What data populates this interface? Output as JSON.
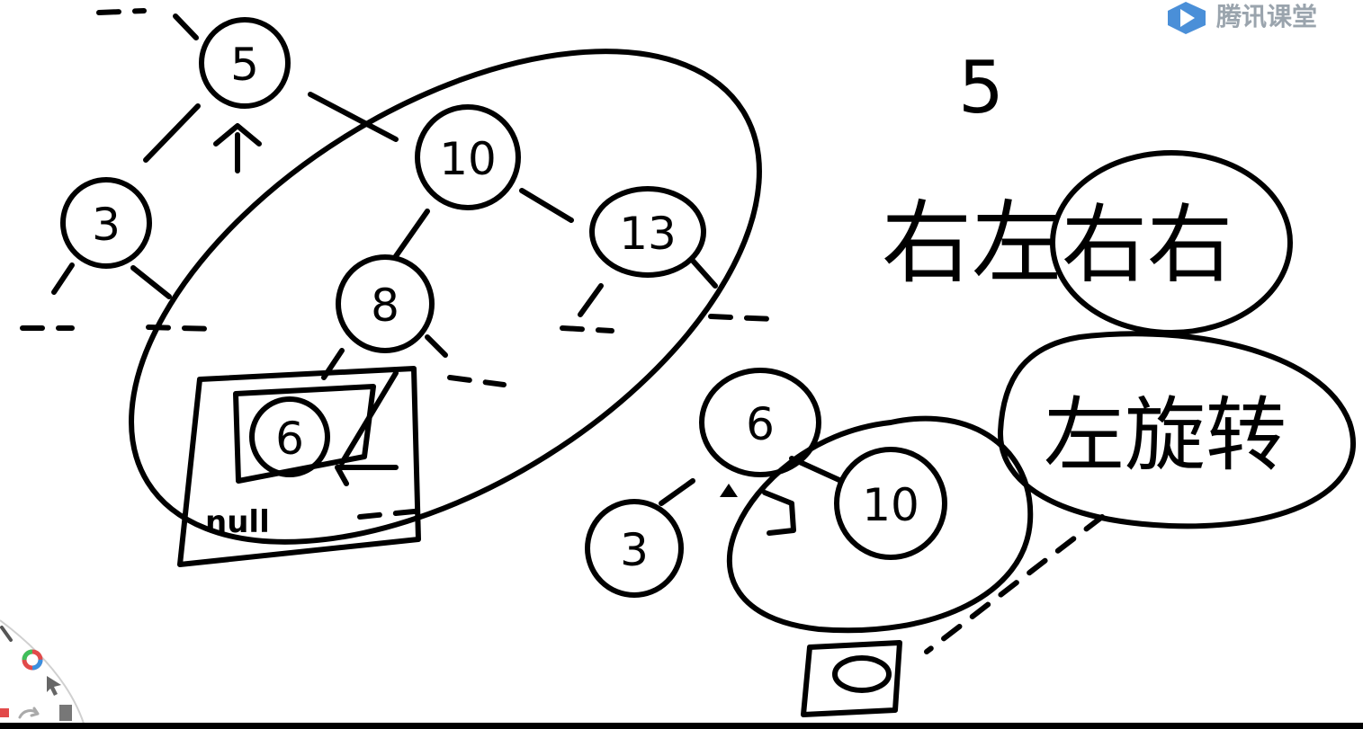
{
  "logo": {
    "text": "腾讯课堂",
    "color": "#4a8fd8"
  },
  "tree_left": {
    "nodes": [
      "5",
      "3",
      "10",
      "8",
      "13",
      "6"
    ],
    "null_label": "null"
  },
  "tree_right": {
    "nodes": [
      "6",
      "3",
      "10",
      "回"
    ]
  },
  "notes": {
    "line1": "5",
    "rotation_1": "右左",
    "rotation_2": "右右",
    "rotation_3": "左旋转"
  },
  "toolbar": {
    "icons": [
      "pencil-icon",
      "color-wheel-icon",
      "pointer-icon",
      "redo-icon",
      "clipboard-icon"
    ]
  }
}
